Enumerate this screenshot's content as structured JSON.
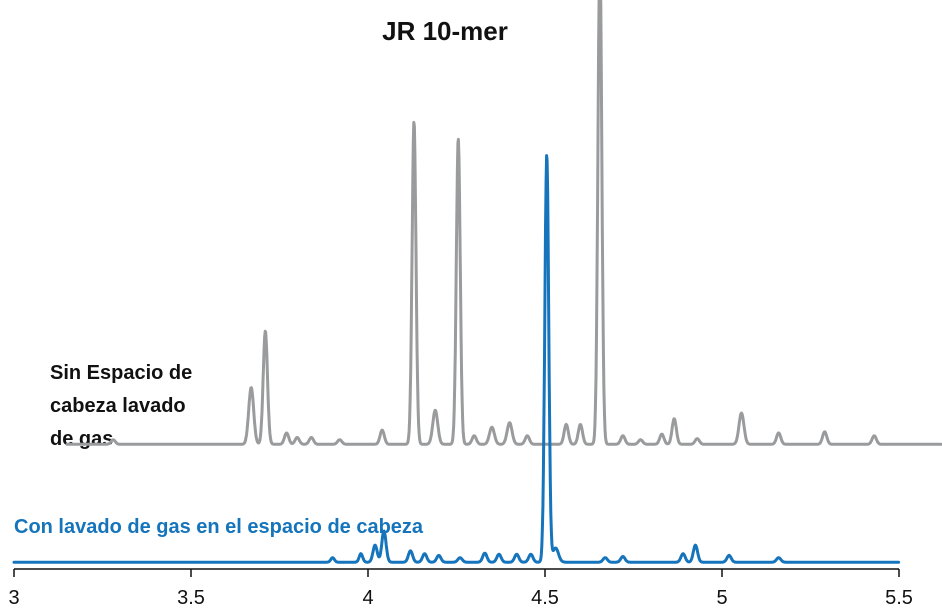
{
  "chart_data": {
    "type": "line",
    "title": "JR 10-mer",
    "xlabel": "",
    "ylabel": "",
    "xlim": [
      3.0,
      5.5
    ],
    "ylim": [
      0,
      100
    ],
    "x_ticks": [
      "3",
      "3.5",
      "4",
      "4.5",
      "5",
      "5.5"
    ],
    "grid": false,
    "legend": "none",
    "series": [
      {
        "name": "Sin Espacio de cabeza lavado de gas",
        "label_lines": [
          "Sin Espacio de",
          "cabeza lavado",
          "de gas"
        ],
        "color": "#9a9b9d",
        "baseline": 22,
        "x_range": [
          3.15,
          5.62
        ],
        "peaks": [
          {
            "x": 3.28,
            "h": 0.8,
            "w": 0.006
          },
          {
            "x": 3.67,
            "h": 10,
            "w": 0.007
          },
          {
            "x": 3.71,
            "h": 20,
            "w": 0.006
          },
          {
            "x": 3.77,
            "h": 2,
            "w": 0.006
          },
          {
            "x": 3.8,
            "h": 1.2,
            "w": 0.006
          },
          {
            "x": 3.84,
            "h": 1.2,
            "w": 0.006
          },
          {
            "x": 3.92,
            "h": 0.8,
            "w": 0.006
          },
          {
            "x": 4.04,
            "h": 2.5,
            "w": 0.006
          },
          {
            "x": 4.13,
            "h": 57,
            "w": 0.0055
          },
          {
            "x": 4.19,
            "h": 6,
            "w": 0.007
          },
          {
            "x": 4.255,
            "h": 54,
            "w": 0.0055
          },
          {
            "x": 4.3,
            "h": 1.5,
            "w": 0.006
          },
          {
            "x": 4.35,
            "h": 3,
            "w": 0.007
          },
          {
            "x": 4.4,
            "h": 3.8,
            "w": 0.007
          },
          {
            "x": 4.45,
            "h": 1.5,
            "w": 0.006
          },
          {
            "x": 4.56,
            "h": 3.5,
            "w": 0.006
          },
          {
            "x": 4.6,
            "h": 3.5,
            "w": 0.006
          },
          {
            "x": 4.655,
            "h": 86,
            "w": 0.0055
          },
          {
            "x": 4.72,
            "h": 1.5,
            "w": 0.006
          },
          {
            "x": 4.77,
            "h": 0.8,
            "w": 0.006
          },
          {
            "x": 4.83,
            "h": 1.8,
            "w": 0.006
          },
          {
            "x": 4.865,
            "h": 4.5,
            "w": 0.006
          },
          {
            "x": 4.93,
            "h": 1,
            "w": 0.006
          },
          {
            "x": 5.055,
            "h": 5.5,
            "w": 0.007
          },
          {
            "x": 5.16,
            "h": 2,
            "w": 0.006
          },
          {
            "x": 5.29,
            "h": 2.2,
            "w": 0.006
          },
          {
            "x": 5.43,
            "h": 1.5,
            "w": 0.006
          }
        ]
      },
      {
        "name": "Con lavado de gas en el espacio de cabeza",
        "color": "#1574bb",
        "baseline": 1.2,
        "x_range": [
          3.0,
          5.5
        ],
        "peaks": [
          {
            "x": 3.9,
            "h": 0.8,
            "w": 0.005
          },
          {
            "x": 3.98,
            "h": 1.5,
            "w": 0.005
          },
          {
            "x": 4.02,
            "h": 3,
            "w": 0.006
          },
          {
            "x": 4.045,
            "h": 5.5,
            "w": 0.006
          },
          {
            "x": 4.12,
            "h": 2,
            "w": 0.006
          },
          {
            "x": 4.16,
            "h": 1.5,
            "w": 0.006
          },
          {
            "x": 4.2,
            "h": 1.2,
            "w": 0.006
          },
          {
            "x": 4.26,
            "h": 0.8,
            "w": 0.006
          },
          {
            "x": 4.33,
            "h": 1.6,
            "w": 0.006
          },
          {
            "x": 4.37,
            "h": 1.4,
            "w": 0.006
          },
          {
            "x": 4.42,
            "h": 1.4,
            "w": 0.006
          },
          {
            "x": 4.46,
            "h": 1.4,
            "w": 0.006
          },
          {
            "x": 4.505,
            "h": 72,
            "w": 0.0055
          },
          {
            "x": 4.53,
            "h": 2.5,
            "w": 0.008
          },
          {
            "x": 4.67,
            "h": 0.8,
            "w": 0.006
          },
          {
            "x": 4.72,
            "h": 1,
            "w": 0.006
          },
          {
            "x": 4.89,
            "h": 1.5,
            "w": 0.006
          },
          {
            "x": 4.925,
            "h": 3,
            "w": 0.006
          },
          {
            "x": 5.02,
            "h": 1.2,
            "w": 0.006
          },
          {
            "x": 5.16,
            "h": 0.8,
            "w": 0.006
          }
        ]
      }
    ]
  }
}
